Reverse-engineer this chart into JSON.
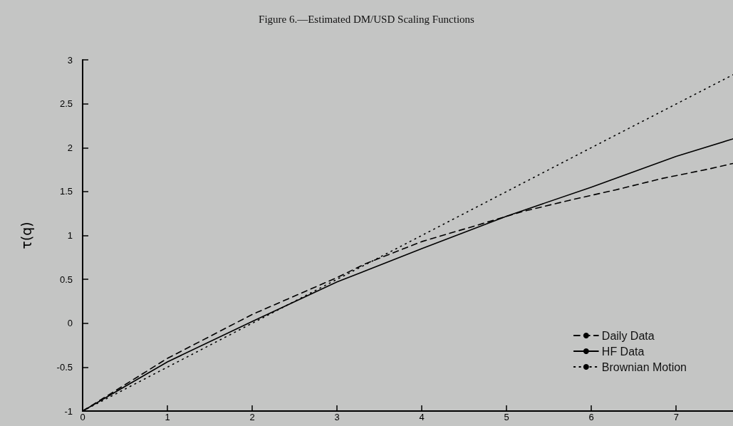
{
  "chart_data": {
    "type": "line",
    "title": "Figure 6.—Estimated DM/USD Scaling Functions",
    "ylabel": "τ(q)",
    "xlim": [
      0,
      7.67
    ],
    "xticks": [
      0,
      1,
      2,
      3,
      4,
      5,
      6,
      7
    ],
    "ylim": [
      -1,
      3
    ],
    "yticks": [
      -1,
      -0.5,
      0,
      0.5,
      1,
      1.5,
      2,
      2.5,
      3
    ],
    "grid": false,
    "legend": "bottom right",
    "marker": "none",
    "series": [
      {
        "name": "Daily Data",
        "color": "#000000",
        "line_style": "dashed",
        "x": [
          0,
          0.5,
          1,
          1.5,
          2,
          3,
          3.34,
          4,
          4.63,
          5.18,
          5.74,
          6.29,
          6.84,
          7.4,
          7.67
        ],
        "values": [
          -1,
          -0.7,
          -0.4,
          -0.15,
          0.1,
          0.52,
          0.68,
          0.93,
          1.11,
          1.27,
          1.4,
          1.52,
          1.65,
          1.76,
          1.82
        ]
      },
      {
        "name": "HF Data",
        "color": "#000000",
        "line_style": "solid",
        "x": [
          0,
          0.5,
          1,
          2,
          3,
          4,
          5,
          6,
          7,
          7.67
        ],
        "values": [
          -1,
          -0.72,
          -0.44,
          0.02,
          0.47,
          0.85,
          1.22,
          1.55,
          1.9,
          2.1
        ]
      },
      {
        "name": "Brownian Motion",
        "color": "#000000",
        "line_style": "dotted",
        "x": [
          0,
          2,
          4,
          6,
          7.67
        ],
        "values": [
          -1,
          0,
          1,
          2,
          2.83
        ]
      }
    ]
  }
}
